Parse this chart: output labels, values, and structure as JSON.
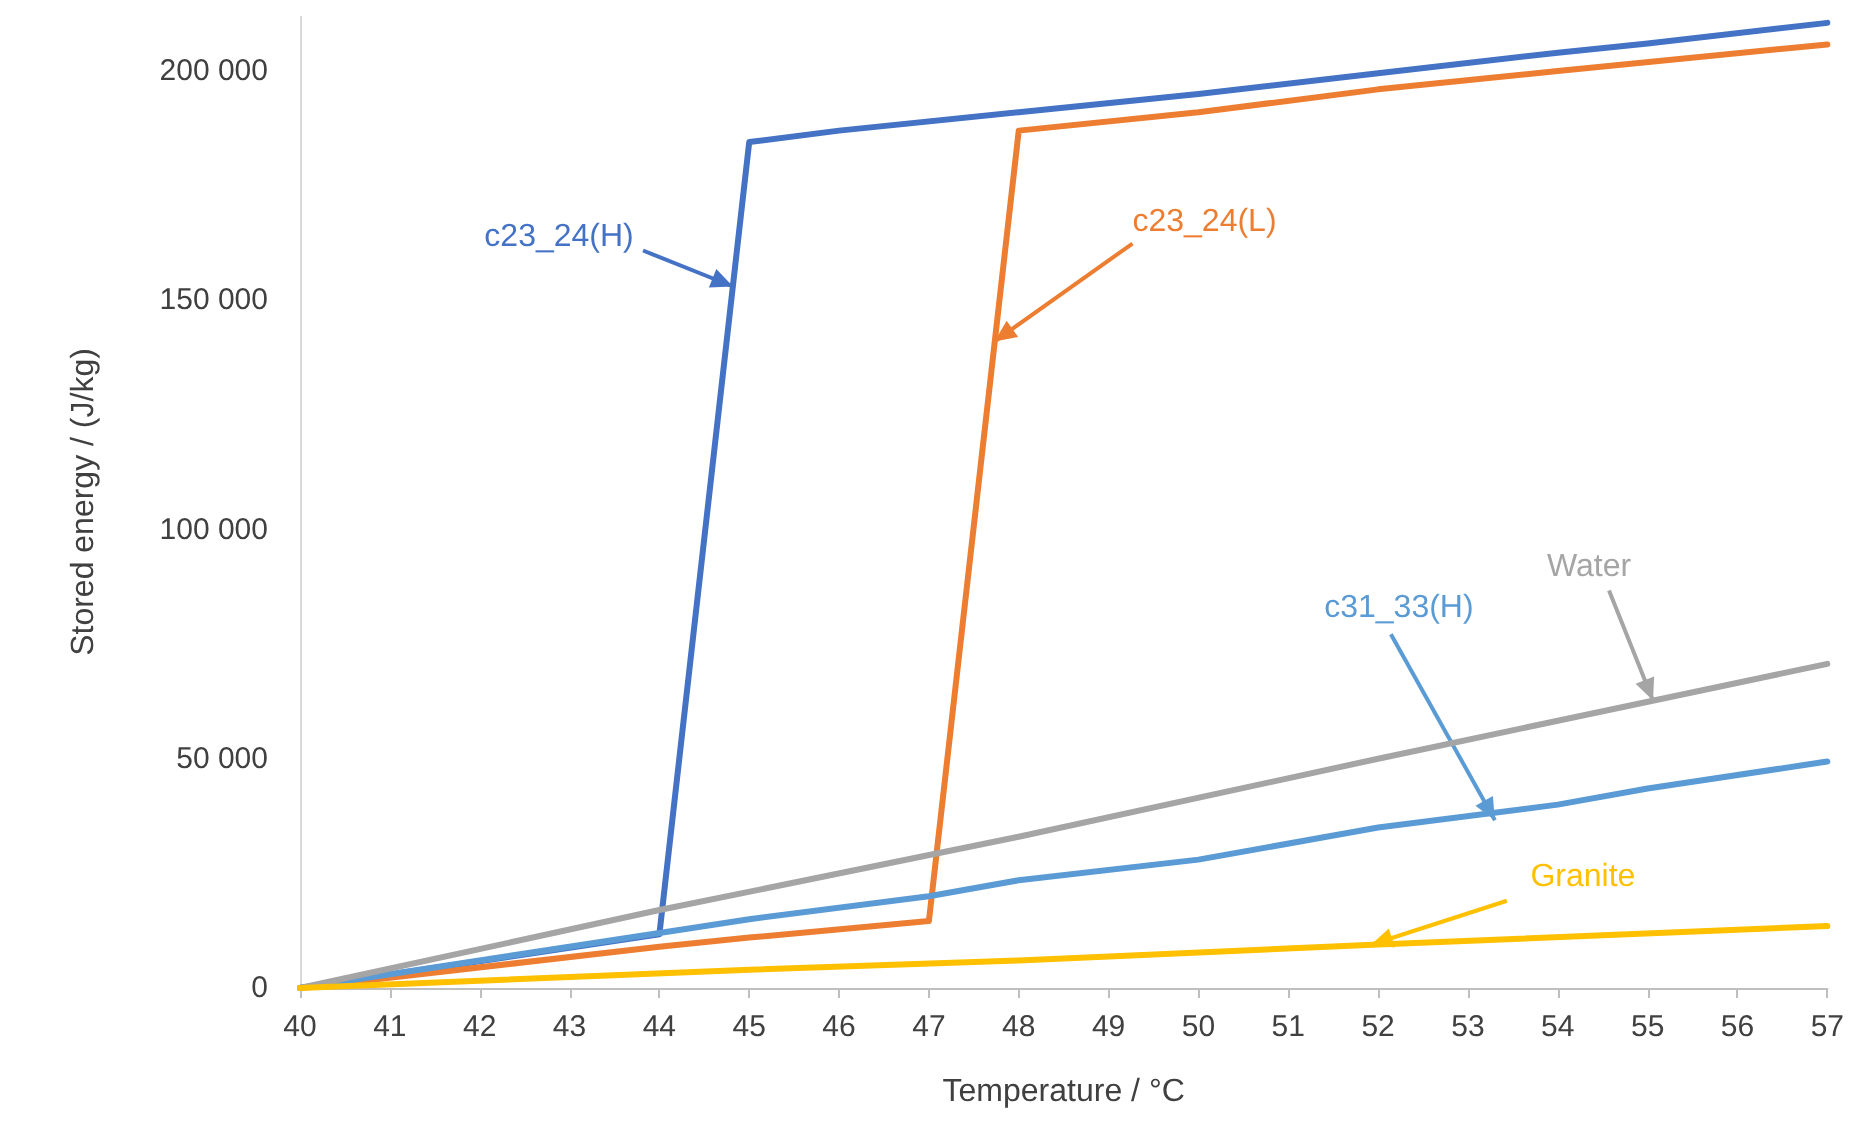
{
  "chart_data": {
    "type": "line",
    "xlabel": "Temperature / °C",
    "ylabel": "Stored energy / (J/kg)",
    "xlim": [
      40,
      57
    ],
    "xticks": [
      40,
      41,
      42,
      43,
      44,
      45,
      46,
      47,
      48,
      49,
      50,
      51,
      52,
      53,
      54,
      55,
      56,
      57
    ],
    "ylim": [
      0,
      212000
    ],
    "yticks": [
      0,
      {
        "value": 50000,
        "label": "50 000"
      },
      {
        "value": 100000,
        "label": "100 000"
      },
      {
        "value": 150000,
        "label": "150 000"
      },
      {
        "value": 200000,
        "label": "200 000"
      }
    ],
    "grid": false,
    "marker": "none",
    "line_style": "solid",
    "series": [
      {
        "color": "#4472c4",
        "x": [
          40,
          44,
          45,
          46,
          48,
          50,
          52,
          54,
          55,
          57
        ],
        "values": [
          0,
          11700,
          184500,
          187000,
          191000,
          195000,
          199500,
          204000,
          206000,
          210500
        ]
      },
      {
        "color": "#ed7d31",
        "x": [
          40,
          44,
          45,
          47,
          48,
          50,
          52,
          54,
          57
        ],
        "values": [
          0,
          9000,
          11000,
          14600,
          187000,
          191000,
          196000,
          200000,
          205800
        ]
      },
      {
        "color": "#5b9bd5",
        "x": [
          40,
          44,
          45,
          47,
          48,
          50,
          52,
          54,
          55,
          57
        ],
        "values": [
          0,
          12000,
          15000,
          20000,
          23500,
          28000,
          35000,
          40000,
          43500,
          49400
        ]
      },
      {
        "color": "#a5a5a5",
        "x": [
          40,
          44,
          48,
          52,
          57
        ],
        "values": [
          0,
          17000,
          33000,
          50000,
          70700
        ]
      },
      {
        "color": "#ffc000",
        "x": [
          40,
          45,
          48,
          52,
          57
        ],
        "values": [
          0,
          4000,
          6000,
          9500,
          13500
        ]
      }
    ],
    "annotations": [
      {
        "text": "c23_24(H)",
        "x": 44.82,
        "y": 153000
      },
      {
        "text": "c23_24(L)",
        "x": 47.73,
        "y": 141000
      },
      {
        "text": "c31_33(H)",
        "x": 53.3,
        "y": 36600
      },
      {
        "text": "Water",
        "x": 55.06,
        "y": 62700
      },
      {
        "text": "Granite",
        "x": 51.92,
        "y": 9430
      }
    ]
  }
}
